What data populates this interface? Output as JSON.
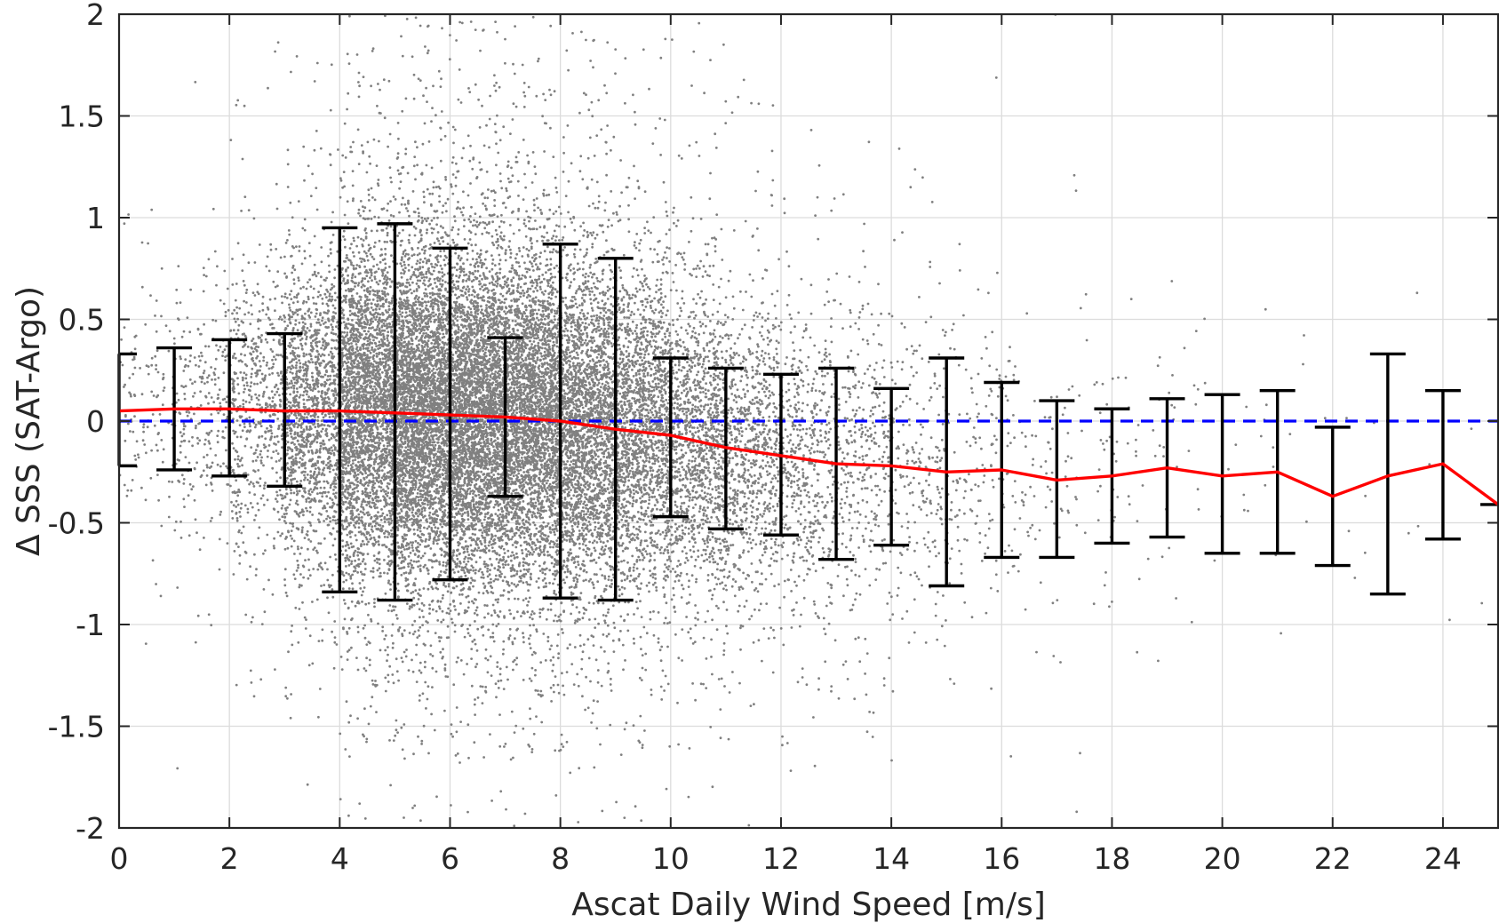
{
  "chart_data": {
    "type": "scatter",
    "title": "",
    "xlabel": "Ascat Daily Wind Speed [m/s]",
    "ylabel": "Δ SSS (SAT-Argo)",
    "xlim": [
      0,
      25
    ],
    "ylim": [
      -2,
      2
    ],
    "x_ticks": [
      0,
      2,
      4,
      6,
      8,
      10,
      12,
      14,
      16,
      18,
      20,
      22,
      24
    ],
    "y_ticks": [
      2,
      1.5,
      1,
      0.5,
      0,
      -0.5,
      -1,
      -1.5,
      -2
    ],
    "x_tick_labels": [
      "0",
      "2",
      "4",
      "6",
      "8",
      "10",
      "12",
      "14",
      "16",
      "18",
      "20",
      "22",
      "24"
    ],
    "y_tick_labels": [
      "2",
      "1.5",
      "1",
      "0.5",
      "0",
      "-0.5",
      "-1",
      "-1.5",
      "-2"
    ],
    "grid": true,
    "legend": "none",
    "series": [
      {
        "kind": "scatter",
        "color": "#808080",
        "description": "dense cloud of individual satellite-minus-Argo SSS differences, densest between 3 and 10 m/s",
        "density_profile": [
          {
            "x": 0.5,
            "center": 0.05,
            "sd": 0.28,
            "weight": 120
          },
          {
            "x": 1.5,
            "center": 0.06,
            "sd": 0.3,
            "weight": 260
          },
          {
            "x": 2.5,
            "center": 0.06,
            "sd": 0.32,
            "weight": 600
          },
          {
            "x": 3.5,
            "center": 0.05,
            "sd": 0.36,
            "weight": 1500
          },
          {
            "x": 4.5,
            "center": 0.05,
            "sd": 0.4,
            "weight": 3000
          },
          {
            "x": 5.5,
            "center": 0.04,
            "sd": 0.4,
            "weight": 3800
          },
          {
            "x": 6.5,
            "center": 0.02,
            "sd": 0.4,
            "weight": 3800
          },
          {
            "x": 7.5,
            "center": 0.0,
            "sd": 0.4,
            "weight": 3300
          },
          {
            "x": 8.5,
            "center": -0.03,
            "sd": 0.4,
            "weight": 2600
          },
          {
            "x": 9.5,
            "center": -0.06,
            "sd": 0.38,
            "weight": 1900
          },
          {
            "x": 10.5,
            "center": -0.1,
            "sd": 0.36,
            "weight": 1300
          },
          {
            "x": 11.5,
            "center": -0.15,
            "sd": 0.36,
            "weight": 850
          },
          {
            "x": 12.5,
            "center": -0.19,
            "sd": 0.36,
            "weight": 560
          },
          {
            "x": 13.5,
            "center": -0.22,
            "sd": 0.36,
            "weight": 360
          },
          {
            "x": 14.5,
            "center": -0.24,
            "sd": 0.36,
            "weight": 230
          },
          {
            "x": 15.5,
            "center": -0.25,
            "sd": 0.38,
            "weight": 140
          },
          {
            "x": 16.5,
            "center": -0.27,
            "sd": 0.36,
            "weight": 85
          },
          {
            "x": 17.5,
            "center": -0.28,
            "sd": 0.34,
            "weight": 55
          },
          {
            "x": 18.5,
            "center": -0.24,
            "sd": 0.34,
            "weight": 35
          },
          {
            "x": 19.5,
            "center": -0.25,
            "sd": 0.34,
            "weight": 22
          },
          {
            "x": 20.5,
            "center": -0.25,
            "sd": 0.36,
            "weight": 14
          },
          {
            "x": 21.5,
            "center": -0.3,
            "sd": 0.34,
            "weight": 9
          },
          {
            "x": 22.5,
            "center": -0.3,
            "sd": 0.36,
            "weight": 6
          },
          {
            "x": 23.5,
            "center": -0.25,
            "sd": 0.34,
            "weight": 4
          },
          {
            "x": 24.5,
            "center": -0.3,
            "sd": 0.34,
            "weight": 3
          }
        ]
      },
      {
        "kind": "line",
        "color": "#ff0000",
        "x": [
          0,
          1,
          2,
          3,
          4,
          5,
          6,
          7,
          8,
          9,
          10,
          11,
          12,
          13,
          14,
          15,
          16,
          17,
          18,
          19,
          20,
          21,
          22,
          23,
          24,
          25
        ],
        "y": [
          0.05,
          0.06,
          0.06,
          0.05,
          0.05,
          0.04,
          0.03,
          0.02,
          0.0,
          -0.04,
          -0.07,
          -0.13,
          -0.17,
          -0.21,
          -0.22,
          -0.25,
          -0.24,
          -0.29,
          -0.27,
          -0.23,
          -0.27,
          -0.25,
          -0.37,
          -0.27,
          -0.21,
          -0.41
        ]
      },
      {
        "kind": "errorbar",
        "color": "#000000",
        "x": [
          0,
          1,
          2,
          3,
          4,
          5,
          6,
          7,
          8,
          9,
          10,
          11,
          12,
          13,
          14,
          15,
          16,
          17,
          18,
          19,
          20,
          21,
          22,
          23,
          24,
          25
        ],
        "upper": [
          0.33,
          0.36,
          0.4,
          0.43,
          0.95,
          0.97,
          0.85,
          0.41,
          0.87,
          0.8,
          0.31,
          0.26,
          0.23,
          0.26,
          0.16,
          0.31,
          0.19,
          0.1,
          0.06,
          0.11,
          0.13,
          0.15,
          -0.03,
          0.33,
          0.15,
          -0.41
        ],
        "lower": [
          -0.22,
          -0.24,
          -0.27,
          -0.32,
          -0.84,
          -0.88,
          -0.78,
          -0.37,
          -0.87,
          -0.88,
          -0.47,
          -0.53,
          -0.56,
          -0.68,
          -0.61,
          -0.81,
          -0.67,
          -0.67,
          -0.6,
          -0.57,
          -0.65,
          -0.65,
          -0.71,
          -0.85,
          -0.58,
          -0.41
        ]
      },
      {
        "kind": "reference-line",
        "color": "#0000ff",
        "style": "dashed",
        "y": 0
      }
    ]
  }
}
